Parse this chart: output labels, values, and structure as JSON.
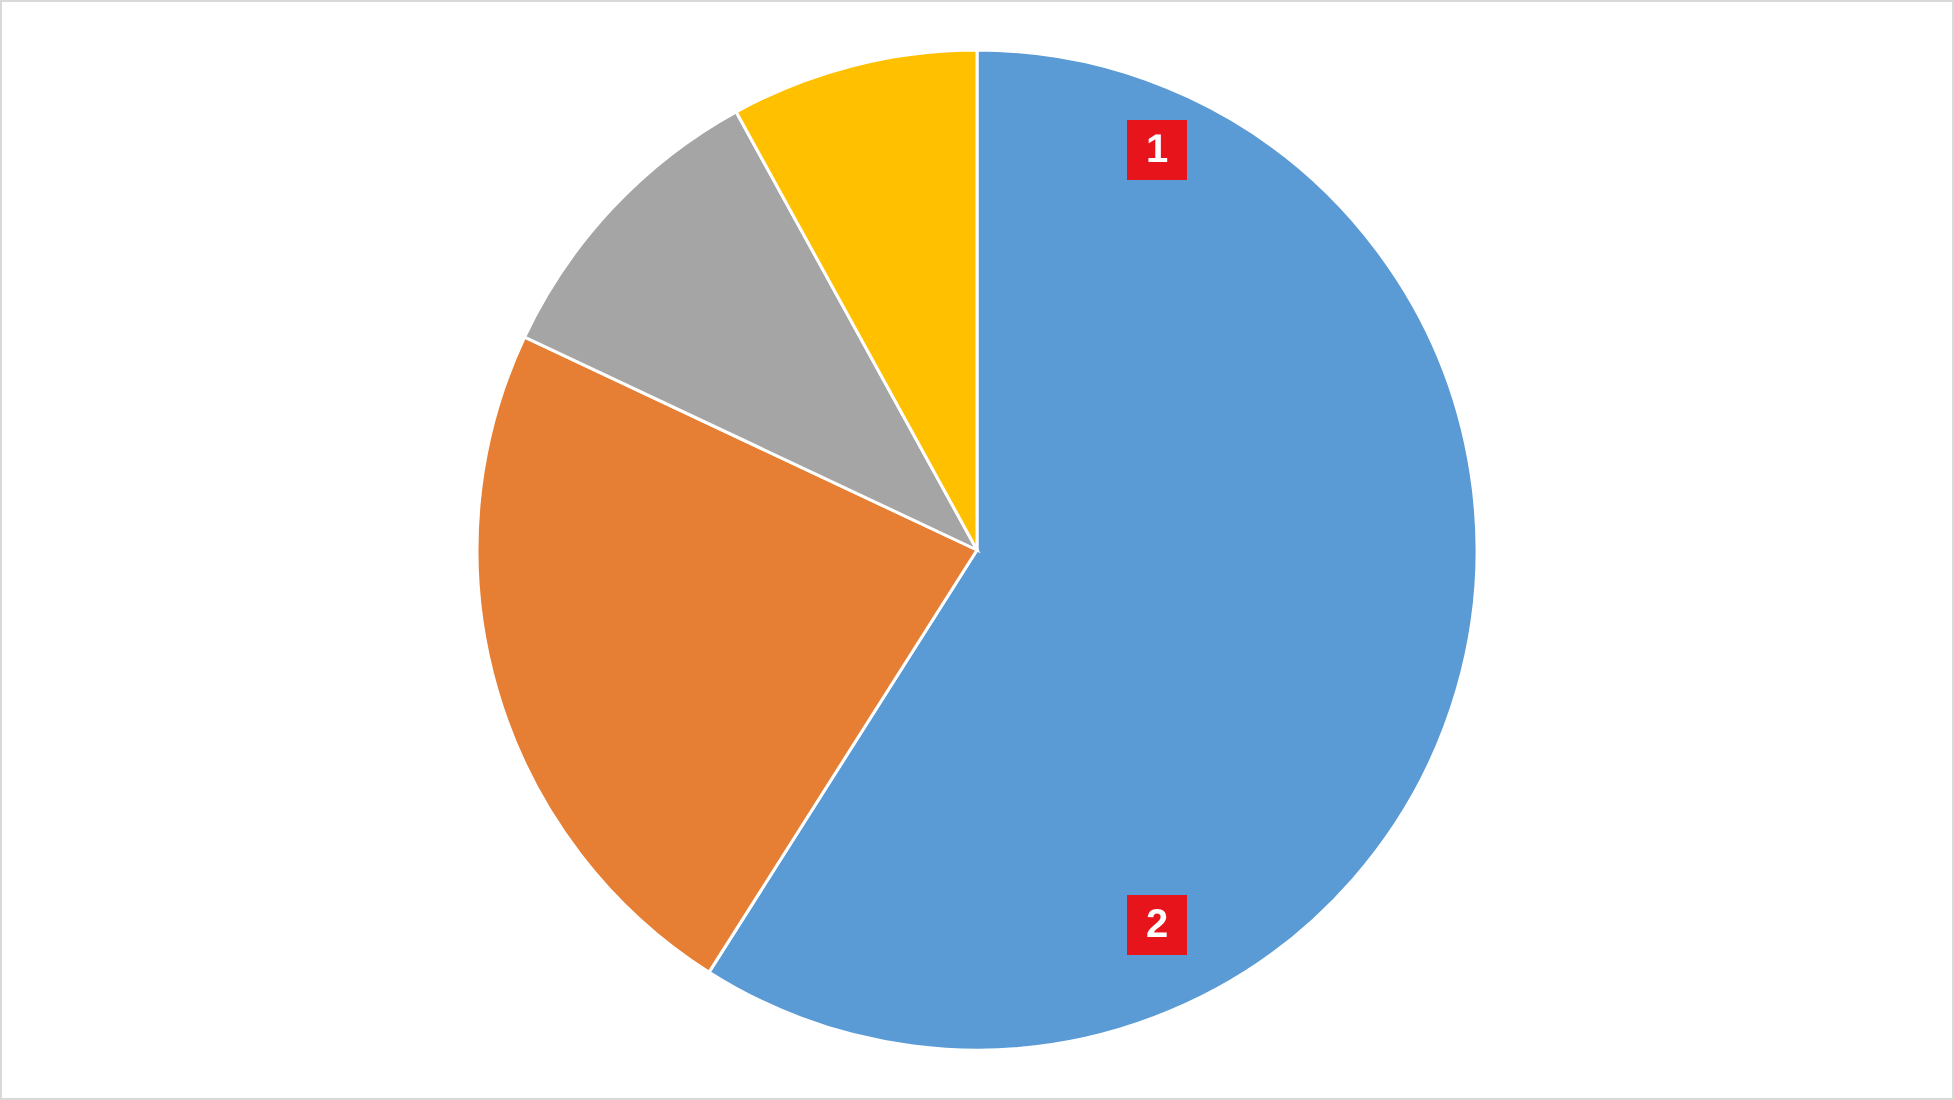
{
  "chart_data": {
    "type": "pie",
    "categories": [
      null,
      null,
      null,
      null
    ],
    "values": [
      59,
      23,
      10,
      8
    ],
    "colors": [
      "#5b9bd5",
      "#e67e33",
      "#a5a5a5",
      "#ffc000"
    ],
    "annotations": [
      "1",
      "2"
    ]
  }
}
